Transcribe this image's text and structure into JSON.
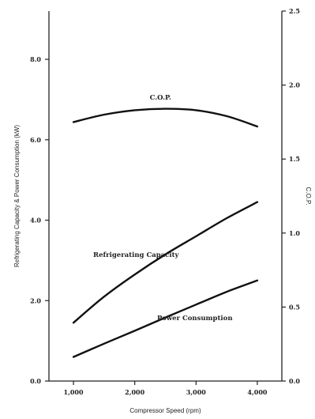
{
  "chart_data": {
    "type": "line",
    "xlabel": "Compressor Speed (rpm)",
    "ylabel": "Refrigerating Capacity & Power Consumption (kW)",
    "y2label": "C.O.P.",
    "xlim": [
      600,
      4400
    ],
    "ylim": [
      0,
      9.2
    ],
    "y2lim": [
      0,
      2.5
    ],
    "xticks": [
      1000,
      2000,
      3000,
      4000
    ],
    "xtick_labels": [
      "1,000",
      "2,000",
      "3,000",
      "4,000"
    ],
    "yticks": [
      0,
      2,
      4,
      6,
      8
    ],
    "ytick_labels": [
      "0.0",
      "2.0",
      "4.0",
      "6.0",
      "8.0"
    ],
    "y2ticks": [
      0,
      0.5,
      1.0,
      1.5,
      2.0,
      2.5
    ],
    "y2tick_labels": [
      "0.0",
      "0.5",
      "1.0",
      "1.5",
      "2.0",
      "2.5"
    ],
    "grid": false,
    "series": [
      {
        "name": "C.O.P.",
        "axis": "right",
        "x": [
          1000,
          1500,
          2000,
          2500,
          3000,
          3500,
          4000
        ],
        "values": [
          1.75,
          1.8,
          1.83,
          1.84,
          1.83,
          1.79,
          1.72
        ]
      },
      {
        "name": "Refrigerating Capacity",
        "axis": "left",
        "x": [
          1000,
          1500,
          2000,
          2500,
          3000,
          3500,
          4000
        ],
        "values": [
          1.45,
          2.1,
          2.65,
          3.15,
          3.6,
          4.05,
          4.45
        ]
      },
      {
        "name": "Power Consumption",
        "axis": "left",
        "x": [
          1000,
          1500,
          2000,
          2500,
          3000,
          3500,
          4000
        ],
        "values": [
          0.6,
          0.93,
          1.25,
          1.58,
          1.9,
          2.22,
          2.5
        ]
      }
    ]
  }
}
